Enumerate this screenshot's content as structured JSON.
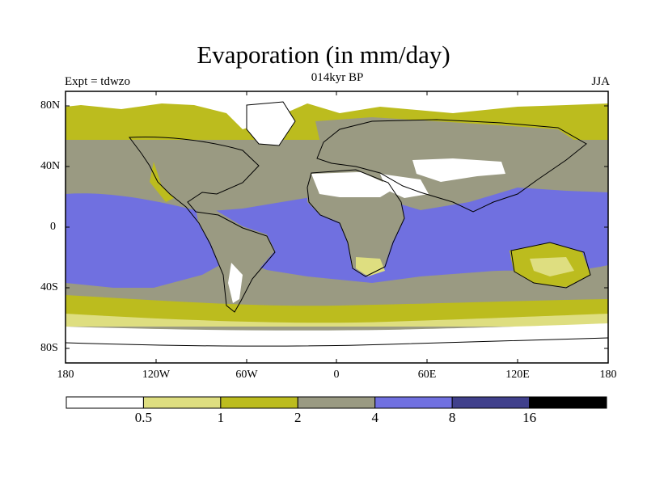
{
  "title": "Evaporation (in mm/day)",
  "subtitle": "014kyr BP",
  "experiment": "Expt = tdwzo",
  "season": "JJA",
  "lat_labels": [
    "80N",
    "40N",
    "0",
    "40S",
    "80S"
  ],
  "lon_labels": [
    "180",
    "120W",
    "60W",
    "0",
    "60E",
    "120E",
    "180"
  ],
  "colorbar": {
    "levels": [
      "0.5",
      "1",
      "2",
      "4",
      "8",
      "16"
    ],
    "colors": [
      "#ffffff",
      "#dede80",
      "#bcbc1e",
      "#9a9a82",
      "#7070e0",
      "#40408c",
      "#000000"
    ]
  },
  "map_colors": {
    "very_low": "#ffffff",
    "low": "#dede80",
    "mid_low": "#bcbc1e",
    "mid": "#9a9a82",
    "high": "#7070e0",
    "very_high": "#40408c"
  }
}
